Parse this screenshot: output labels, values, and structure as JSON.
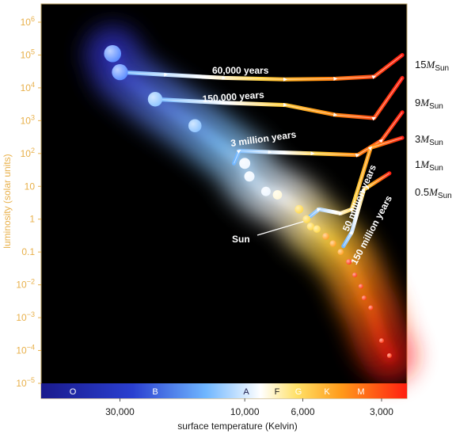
{
  "chart_data": {
    "type": "scatter",
    "title": "",
    "xlabel": "surface temperature (Kelvin)",
    "ylabel": "luminosity (solar units)",
    "x_scale": "log-reversed",
    "y_scale": "log",
    "xlim": [
      60000,
      2400
    ],
    "ylim": [
      1e-05,
      2000000
    ],
    "x_ticks": [
      {
        "value": 30000,
        "label": "30,000"
      },
      {
        "value": 10000,
        "label": "10,000"
      },
      {
        "value": 6000,
        "label": "6,000"
      },
      {
        "value": 3000,
        "label": "3,000"
      }
    ],
    "y_ticks": [
      {
        "exp": 6,
        "base": "10",
        "sup": "6"
      },
      {
        "exp": 5,
        "base": "10",
        "sup": "5"
      },
      {
        "exp": 4,
        "base": "10",
        "sup": "4"
      },
      {
        "exp": 3,
        "base": "10",
        "sup": "3"
      },
      {
        "exp": 2,
        "base": "10",
        "sup": "2"
      },
      {
        "exp": 1,
        "base": "10",
        "sup": ""
      },
      {
        "exp": 0,
        "base": "1",
        "sup": ""
      },
      {
        "exp": -1,
        "base": "0.1",
        "sup": ""
      },
      {
        "exp": -2,
        "base": "10",
        "sup": "−2"
      },
      {
        "exp": -3,
        "base": "10",
        "sup": "−3"
      },
      {
        "exp": -4,
        "base": "10",
        "sup": "−4"
      },
      {
        "exp": -5,
        "base": "10",
        "sup": "−5"
      }
    ],
    "spectral_classes": [
      "O",
      "B",
      "A",
      "F",
      "G",
      "K",
      "M"
    ],
    "main_sequence_stars": [
      {
        "t": 32000,
        "l": 110000
      },
      {
        "t": 30000,
        "l": 30000
      },
      {
        "t": 22000,
        "l": 4500
      },
      {
        "t": 15500,
        "l": 700
      },
      {
        "t": 10000,
        "l": 50
      },
      {
        "t": 9600,
        "l": 20
      },
      {
        "t": 8300,
        "l": 7
      },
      {
        "t": 7500,
        "l": 5.5
      },
      {
        "t": 6200,
        "l": 2
      },
      {
        "t": 5800,
        "l": 1
      },
      {
        "t": 5600,
        "l": 0.6
      },
      {
        "t": 5300,
        "l": 0.5
      },
      {
        "t": 4900,
        "l": 0.3
      },
      {
        "t": 4600,
        "l": 0.18
      },
      {
        "t": 4300,
        "l": 0.1
      },
      {
        "t": 4000,
        "l": 0.05
      },
      {
        "t": 3800,
        "l": 0.02
      },
      {
        "t": 3600,
        "l": 0.009
      },
      {
        "t": 3500,
        "l": 0.004
      },
      {
        "t": 3300,
        "l": 0.002
      },
      {
        "t": 3000,
        "l": 0.0002
      },
      {
        "t": 2800,
        "l": 7e-05
      }
    ],
    "sun": {
      "t": 5800,
      "l": 1,
      "label": "Sun"
    },
    "tracks": [
      {
        "mass_label": "15",
        "mass_unit_sub": "Sun",
        "time_label": "60,000 years",
        "points": [
          [
            2500,
            100000
          ],
          [
            3200,
            22000
          ],
          [
            4500,
            19000
          ],
          [
            7000,
            18000
          ],
          [
            12000,
            20000
          ],
          [
            20000,
            25000
          ],
          [
            30000,
            30000
          ]
        ]
      },
      {
        "mass_label": "9",
        "mass_unit_sub": "Sun",
        "time_label": "150,000 years",
        "points": [
          [
            2500,
            20000
          ],
          [
            3200,
            1200
          ],
          [
            4500,
            1500
          ],
          [
            7000,
            3000
          ],
          [
            12000,
            3500
          ],
          [
            22000,
            4500
          ]
        ]
      },
      {
        "mass_label": "3",
        "mass_unit_sub": "Sun",
        "time_label": "3 million years",
        "points": [
          [
            2500,
            1800
          ],
          [
            3000,
            250
          ],
          [
            3700,
            90
          ],
          [
            5500,
            100
          ],
          [
            8000,
            110
          ],
          [
            10500,
            120
          ],
          [
            11000,
            50
          ]
        ]
      },
      {
        "mass_label": "1",
        "mass_unit_sub": "Sun",
        "time_label": "50 million years",
        "points": [
          [
            2500,
            300
          ],
          [
            3300,
            150
          ],
          [
            3900,
            2
          ],
          [
            4300,
            1.5
          ],
          [
            5200,
            2
          ],
          [
            5800,
            1
          ]
        ]
      },
      {
        "mass_label": "0.5",
        "mass_unit_sub": "Sun",
        "time_label": "150 million years",
        "points": [
          [
            2800,
            25
          ],
          [
            3500,
            8
          ],
          [
            3900,
            0.4
          ],
          [
            4200,
            0.15
          ]
        ]
      }
    ]
  }
}
